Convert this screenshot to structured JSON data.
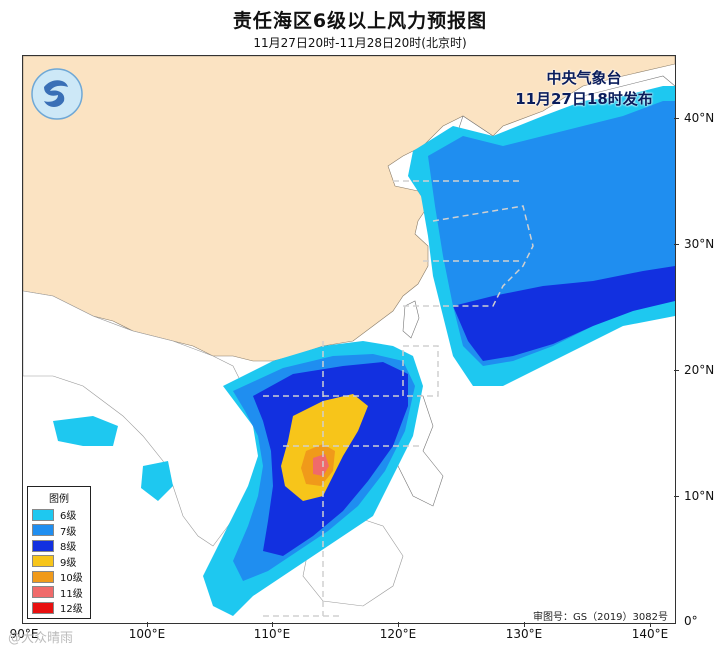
{
  "header": {
    "title": "责任海区6级以上风力预报图",
    "subtitle": "11月27日20时-11月28日20时(北京时)"
  },
  "agency": {
    "name": "中央气象台",
    "issued": "11月27日18时发布"
  },
  "axes": {
    "lat_labels": [
      "40°N",
      "30°N",
      "20°N",
      "10°N",
      "0°"
    ],
    "lon_labels": [
      "90°E",
      "100°E",
      "110°E",
      "120°E",
      "130°E",
      "140°E"
    ]
  },
  "legend": {
    "title": "图例",
    "items": [
      {
        "label": "6级",
        "color": "#1ec8f0"
      },
      {
        "label": "7级",
        "color": "#1f8ef0"
      },
      {
        "label": "8级",
        "color": "#1230e0"
      },
      {
        "label": "9级",
        "color": "#f7c51a"
      },
      {
        "label": "10级",
        "color": "#f09a1a"
      },
      {
        "label": "11级",
        "color": "#f06a6a"
      },
      {
        "label": "12级",
        "color": "#e81010"
      }
    ]
  },
  "footer": {
    "approval": "审图号：GS（2019）3082号",
    "watermark": "@大众晴雨"
  },
  "colors": {
    "land_china": "#fbe3c2",
    "land_other": "#ffffff",
    "sea": "#ffffff",
    "zone_line": "#c8c8c8"
  }
}
